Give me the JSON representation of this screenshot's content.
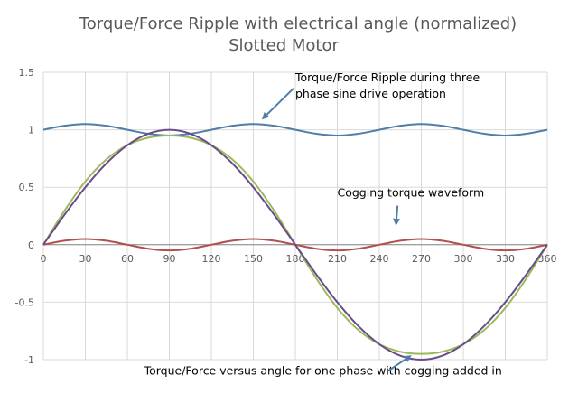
{
  "chart_data": {
    "type": "line",
    "title": "Torque/Force Ripple with electrical angle (normalized)",
    "subtitle": "Slotted Motor",
    "xlabel": "",
    "ylabel": "",
    "xlim": [
      0,
      360
    ],
    "ylim": [
      -1,
      1.5
    ],
    "x_ticks": [
      0,
      30,
      60,
      90,
      120,
      150,
      180,
      210,
      240,
      270,
      300,
      330,
      360
    ],
    "y_ticks": [
      1.5,
      1,
      0.5,
      0,
      -0.5,
      -1
    ],
    "y_tick_labels": [
      "1.5",
      "1",
      "0.5",
      "0",
      "-0.5",
      "-1"
    ],
    "grid": true,
    "x": [
      0,
      15,
      30,
      45,
      60,
      75,
      90,
      105,
      120,
      135,
      150,
      165,
      180,
      195,
      210,
      225,
      240,
      255,
      270,
      285,
      300,
      315,
      330,
      345,
      360
    ],
    "series": [
      {
        "color": "#4f7ea8",
        "values": [
          1.0,
          1.035,
          1.05,
          1.035,
          1.0,
          0.965,
          0.95,
          0.965,
          1.0,
          1.035,
          1.05,
          1.035,
          1.0,
          0.965,
          0.95,
          0.965,
          1.0,
          1.035,
          1.05,
          1.035,
          1.0,
          0.965,
          0.95,
          0.965,
          1.0
        ]
      },
      {
        "color": "#9bbb59",
        "values": [
          0.0,
          0.294,
          0.55,
          0.742,
          0.866,
          0.931,
          0.95,
          0.931,
          0.866,
          0.742,
          0.55,
          0.294,
          0.0,
          -0.294,
          -0.55,
          -0.742,
          -0.866,
          -0.931,
          -0.95,
          -0.931,
          -0.866,
          -0.742,
          -0.55,
          -0.294,
          0.0
        ]
      },
      {
        "color": "#b05050",
        "values": [
          0.0,
          0.035,
          0.05,
          0.035,
          0.0,
          -0.035,
          -0.05,
          -0.035,
          0.0,
          0.035,
          0.05,
          0.035,
          0.0,
          -0.035,
          -0.05,
          -0.035,
          0.0,
          0.035,
          0.05,
          0.035,
          0.0,
          -0.035,
          -0.05,
          -0.035,
          0.0
        ]
      },
      {
        "color": "#6a4c8c",
        "values": [
          0.0,
          0.259,
          0.5,
          0.707,
          0.866,
          0.966,
          1.0,
          0.966,
          0.866,
          0.707,
          0.5,
          0.259,
          0.0,
          -0.259,
          -0.5,
          -0.707,
          -0.866,
          -0.966,
          -1.0,
          -0.966,
          -0.866,
          -0.707,
          -0.5,
          -0.259,
          0.0
        ]
      }
    ],
    "annotations": [
      {
        "text": "Torque/Force Ripple during three",
        "x": 180,
        "y": 1.42,
        "target": [
          157,
          1.1
        ]
      },
      {
        "text": "phase  sine drive operation",
        "x": 180,
        "y": 1.28
      },
      {
        "text": "Cogging torque waveform",
        "x": 210,
        "y": 0.42,
        "target": [
          252,
          0.18
        ]
      },
      {
        "text": "Torque/Force versus angle for one phase with cogging added in",
        "x": 72,
        "y": -1.13,
        "target": [
          262,
          -0.97
        ]
      }
    ]
  }
}
